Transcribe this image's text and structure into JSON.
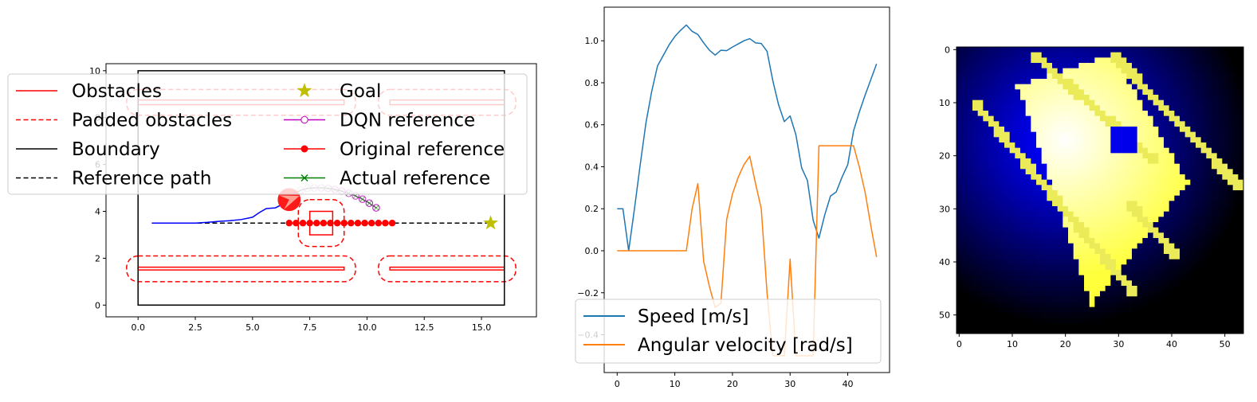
{
  "chart_data": [
    {
      "type": "line",
      "title": "",
      "xlabel": "",
      "ylabel": "",
      "xlim": [
        -1.4,
        17.4
      ],
      "ylim": [
        -0.5,
        10.3
      ],
      "xticks": [
        0.0,
        2.5,
        5.0,
        7.5,
        10.0,
        12.5,
        15.0
      ],
      "xtick_labels": [
        "0.0",
        "2.5",
        "5.0",
        "7.5",
        "10.0",
        "12.5",
        "15.0"
      ],
      "yticks": [
        0,
        2,
        4,
        6,
        8,
        10
      ],
      "ytick_labels": [
        "0",
        "2",
        "4",
        "6",
        "8",
        "10"
      ],
      "legend_placement": "upper-center",
      "legend": [
        {
          "label": "Obstacles",
          "color": "#ff0000",
          "style": "solid"
        },
        {
          "label": "Padded obstacles",
          "color": "#ff0000",
          "style": "dashed"
        },
        {
          "label": "Boundary",
          "color": "#000000",
          "style": "solid"
        },
        {
          "label": "Reference path",
          "color": "#000000",
          "style": "dashed"
        },
        {
          "label": "Goal",
          "color": "#bfbf00",
          "style": "star"
        },
        {
          "label": "DQN reference",
          "color": "#bf00bf",
          "style": "circle-open-line"
        },
        {
          "label": "Original reference",
          "color": "#ff0000",
          "style": "circle-line"
        },
        {
          "label": "Actual reference",
          "color": "#008000",
          "style": "x-line"
        }
      ],
      "boundary": [
        [
          0,
          0
        ],
        [
          16,
          0
        ],
        [
          16,
          10
        ],
        [
          0,
          10
        ]
      ],
      "obstacles": [
        [
          [
            0,
            8.55
          ],
          [
            9,
            8.55
          ],
          [
            9,
            8.75
          ],
          [
            0,
            8.75
          ]
        ],
        [
          [
            11,
            8.55
          ],
          [
            16,
            8.55
          ],
          [
            16,
            8.75
          ],
          [
            11,
            8.75
          ]
        ],
        [
          [
            0,
            1.5
          ],
          [
            9,
            1.5
          ],
          [
            9,
            1.62
          ],
          [
            0,
            1.62
          ]
        ],
        [
          [
            11,
            1.5
          ],
          [
            16,
            1.5
          ],
          [
            16,
            1.62
          ],
          [
            11,
            1.62
          ]
        ],
        [
          [
            7.5,
            3.0
          ],
          [
            8.5,
            3.0
          ],
          [
            8.5,
            4.0
          ],
          [
            7.5,
            4.0
          ]
        ]
      ],
      "padded_obstacles": [
        [
          [
            -0.5,
            8.1
          ],
          [
            9.5,
            8.1
          ],
          [
            9.5,
            9.2
          ],
          [
            -0.5,
            9.2
          ]
        ],
        [
          [
            10.5,
            8.1
          ],
          [
            16.5,
            8.1
          ],
          [
            16.5,
            9.2
          ],
          [
            10.5,
            9.2
          ]
        ],
        [
          [
            -0.5,
            1.0
          ],
          [
            9.5,
            1.0
          ],
          [
            9.5,
            2.1
          ],
          [
            -0.5,
            2.1
          ]
        ],
        [
          [
            10.5,
            1.0
          ],
          [
            16.5,
            1.0
          ],
          [
            16.5,
            2.1
          ],
          [
            10.5,
            2.1
          ]
        ],
        [
          [
            7.0,
            2.5
          ],
          [
            9.0,
            2.5
          ],
          [
            9.0,
            4.5
          ],
          [
            7.0,
            4.5
          ]
        ]
      ],
      "reference_path": {
        "x": [
          0.6,
          15.4
        ],
        "y": [
          3.5,
          3.5
        ]
      },
      "goal": {
        "x": 15.4,
        "y": 3.5
      },
      "trajectory": {
        "x": [
          0.6,
          1.5,
          2.5,
          3.0,
          3.5,
          4.0,
          4.5,
          5.0,
          5.3,
          5.6,
          6.0,
          6.3,
          6.6
        ],
        "y": [
          3.5,
          3.5,
          3.5,
          3.53,
          3.57,
          3.6,
          3.65,
          3.75,
          3.95,
          4.12,
          4.15,
          4.3,
          4.5
        ]
      },
      "original_reference": {
        "x": [
          6.6,
          6.9,
          7.2,
          7.5,
          7.8,
          8.1,
          8.4,
          8.7,
          9.0,
          9.3,
          9.6,
          9.9,
          10.2,
          10.5,
          10.8,
          11.1
        ],
        "y": [
          3.5,
          3.5,
          3.5,
          3.5,
          3.5,
          3.5,
          3.5,
          3.5,
          3.5,
          3.5,
          3.5,
          3.5,
          3.5,
          3.5,
          3.5,
          3.5
        ]
      },
      "dqn_reference": {
        "x": [
          6.8,
          7.1,
          7.4,
          7.7,
          8.0,
          8.3,
          8.6,
          8.9,
          9.2,
          9.5,
          9.8,
          10.1,
          10.4
        ],
        "y": [
          4.75,
          4.9,
          4.98,
          5.0,
          5.0,
          4.98,
          4.93,
          4.86,
          4.77,
          4.66,
          4.52,
          4.35,
          4.15
        ]
      },
      "actual_reference": {
        "x": [
          6.8,
          7.1,
          7.4,
          7.7,
          8.0,
          8.3,
          8.6,
          8.9,
          9.2,
          9.5,
          9.8,
          10.1,
          10.4
        ],
        "y": [
          4.75,
          4.9,
          4.98,
          5.0,
          5.0,
          4.98,
          4.93,
          4.86,
          4.77,
          4.66,
          4.52,
          4.35,
          4.15
        ]
      },
      "robot": {
        "x": 6.6,
        "y": 4.5,
        "radius": 0.5,
        "heading_deg": 20
      }
    },
    {
      "type": "line",
      "title": "",
      "xlabel": "",
      "ylabel": "",
      "xlim": [
        -2.25,
        47.25
      ],
      "ylim": [
        -0.58,
        1.16
      ],
      "xticks": [
        0,
        10,
        20,
        30,
        40
      ],
      "xtick_labels": [
        "0",
        "10",
        "20",
        "30",
        "40"
      ],
      "yticks": [
        -0.4,
        -0.2,
        0.0,
        0.2,
        0.4,
        0.6,
        0.8,
        1.0
      ],
      "ytick_labels": [
        "−0.4",
        "−0.2",
        "0.0",
        "0.2",
        "0.4",
        "0.6",
        "0.8",
        "1.0"
      ],
      "legend_placement": "lower-left",
      "series": [
        {
          "name": "Speed [m/s]",
          "color": "#1f77b4",
          "x": [
            0,
            1,
            2,
            3,
            4,
            5,
            6,
            7,
            8,
            9,
            10,
            11,
            12,
            13,
            14,
            15,
            16,
            17,
            18,
            19,
            20,
            21,
            22,
            23,
            24,
            25,
            26,
            27,
            28,
            29,
            30,
            31,
            32,
            33,
            34,
            35,
            36,
            37,
            38,
            39,
            40,
            41,
            42,
            43,
            44,
            45
          ],
          "y": [
            0.2,
            0.2,
            0.0,
            0.2,
            0.41,
            0.61,
            0.76,
            0.88,
            0.93,
            0.98,
            1.02,
            1.05,
            1.075,
            1.045,
            1.03,
            0.99,
            0.955,
            0.932,
            0.955,
            0.953,
            0.97,
            0.985,
            1.0,
            1.01,
            0.99,
            0.987,
            0.95,
            0.81,
            0.695,
            0.615,
            0.642,
            0.553,
            0.395,
            0.335,
            0.145,
            0.06,
            0.17,
            0.26,
            0.28,
            0.35,
            0.41,
            0.57,
            0.66,
            0.74,
            0.815,
            0.89
          ]
        },
        {
          "name": "Angular velocity [rad/s]",
          "color": "#ff7f0e",
          "x": [
            0,
            1,
            2,
            3,
            4,
            5,
            6,
            7,
            8,
            9,
            10,
            11,
            12,
            13,
            14,
            15,
            16,
            17,
            18,
            19,
            20,
            21,
            22,
            23,
            24,
            25,
            26,
            27,
            28,
            29,
            30,
            31,
            32,
            33,
            34,
            35,
            36,
            37,
            38,
            39,
            40,
            41,
            42,
            43,
            44,
            45
          ],
          "y": [
            0.0,
            0.0,
            0.0,
            0.0,
            0.0,
            0.0,
            0.0,
            0.0,
            0.0,
            0.0,
            0.0,
            0.0,
            0.0,
            0.2,
            0.32,
            -0.05,
            -0.17,
            -0.27,
            -0.25,
            0.15,
            0.27,
            0.35,
            0.41,
            0.45,
            0.32,
            0.2,
            -0.2,
            -0.5,
            -0.5,
            -0.5,
            -0.04,
            -0.5,
            -0.5,
            -0.5,
            -0.5,
            0.5,
            0.5,
            0.5,
            0.5,
            0.5,
            0.5,
            0.5,
            0.4,
            0.28,
            0.12,
            -0.03
          ]
        }
      ]
    },
    {
      "type": "heatmap",
      "title": "",
      "xlabel": "",
      "ylabel": "",
      "xlim": [
        -0.5,
        54.5
      ],
      "ylim": [
        54.5,
        -0.5
      ],
      "xticks": [
        0,
        10,
        20,
        30,
        40,
        50
      ],
      "xtick_labels": [
        "0",
        "10",
        "20",
        "30",
        "40",
        "50"
      ],
      "yticks": [
        0,
        10,
        20,
        30,
        40,
        50
      ],
      "ytick_labels": [
        "0",
        "10",
        "20",
        "30",
        "40",
        "50"
      ],
      "grid_size": 54,
      "colormap": [
        "#000000",
        "#0000ff",
        "#ffffff",
        "#ffff00"
      ],
      "features": {
        "field_peak": [
          20,
          17
        ],
        "rectangle_corners": [
          [
            11,
            7
          ],
          [
            29,
            1
          ],
          [
            43,
            25
          ],
          [
            25,
            48
          ]
        ],
        "hole": {
          "center": [
            31,
            17
          ],
          "size": 5
        },
        "obstacle_lines": [
          [
            [
              3,
              10
            ],
            [
              33,
              46
            ]
          ],
          [
            [
              29,
              1
            ],
            [
              53,
              26
            ]
          ],
          [
            [
              14,
              1
            ],
            [
              37,
              21
            ]
          ],
          [
            [
              32,
              29
            ],
            [
              41,
              39
            ]
          ]
        ]
      }
    }
  ]
}
